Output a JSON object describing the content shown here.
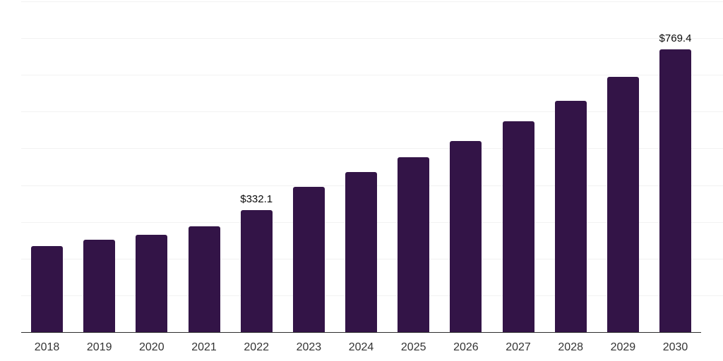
{
  "chart_data": {
    "type": "bar",
    "title": "",
    "xlabel": "",
    "ylabel": "",
    "categories": [
      "2018",
      "2019",
      "2020",
      "2021",
      "2022",
      "2023",
      "2024",
      "2025",
      "2026",
      "2027",
      "2028",
      "2029",
      "2030"
    ],
    "values": [
      233.4,
      250.6,
      264.1,
      287.0,
      332.1,
      396.2,
      436.4,
      476.6,
      520.6,
      573.2,
      629.7,
      694.8,
      769.4
    ],
    "annotations": [
      {
        "category": "2022",
        "text": "$332.1"
      },
      {
        "category": "2030",
        "text": "$769.4"
      }
    ],
    "ylim": [
      0,
      900
    ],
    "grid_step": 100,
    "grid": "horizontal-only",
    "y_axis_tick_labels_visible": false,
    "legend": "none",
    "colors": {
      "bar": "#331447",
      "gridline": "#f2f2f2",
      "axis": "#2e2e2e",
      "tick_label": "#333333",
      "annotation": "#0a0a0a",
      "background": "#ffffff"
    }
  }
}
